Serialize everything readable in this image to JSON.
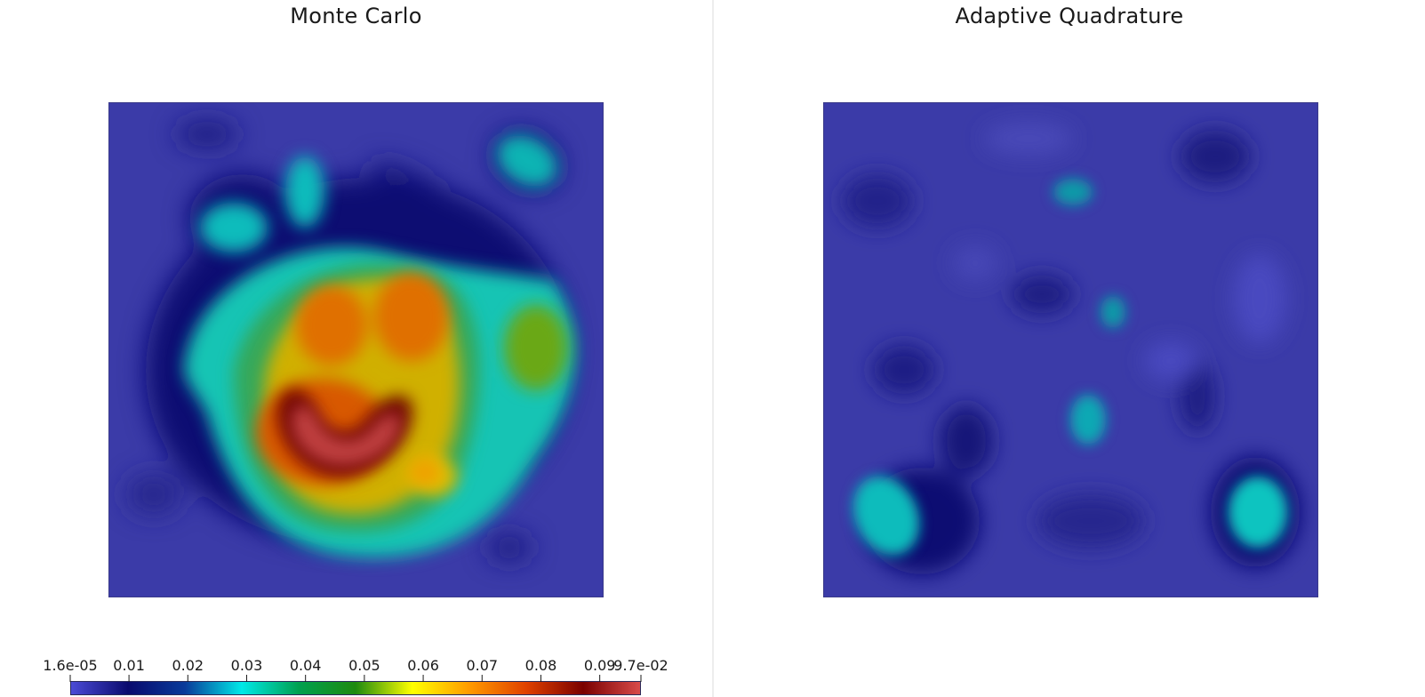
{
  "panels": [
    {
      "title": "Monte Carlo"
    },
    {
      "title": "Adaptive Quadrature"
    }
  ],
  "colorbar": {
    "min": 1.6e-05,
    "max": 0.097,
    "tick_labels": [
      "1.6e-05",
      "0.01",
      "0.02",
      "0.03",
      "0.04",
      "0.05",
      "0.06",
      "0.07",
      "0.08",
      "0.09",
      "9.7e-02"
    ],
    "tick_values": [
      1.6e-05,
      0.01,
      0.02,
      0.03,
      0.04,
      0.05,
      0.06,
      0.07,
      0.08,
      0.09,
      0.097
    ],
    "colormap": "jet",
    "colormap_stops": [
      [
        "0.00",
        "#4b4bd6"
      ],
      [
        "0.10",
        "#0a0a6e"
      ],
      [
        "0.20",
        "#0a3a9a"
      ],
      [
        "0.30",
        "#00e8e8"
      ],
      [
        "0.40",
        "#00a050"
      ],
      [
        "0.50",
        "#1e8a10"
      ],
      [
        "0.60",
        "#ffff00"
      ],
      [
        "0.70",
        "#ff9a00"
      ],
      [
        "0.80",
        "#e04000"
      ],
      [
        "0.90",
        "#7a0000"
      ],
      [
        "1.00",
        "#d84a4a"
      ]
    ],
    "background_color": "#3b3ba8"
  }
}
